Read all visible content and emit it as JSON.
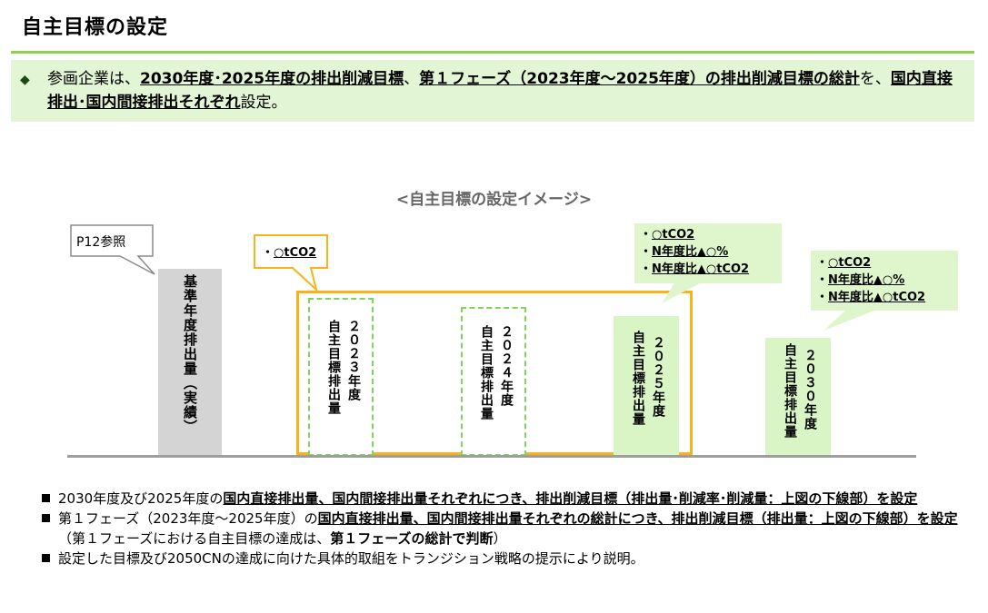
{
  "title": "自主目標の設定",
  "summary": {
    "marker": "◆",
    "segments": [
      {
        "text": "参画企業は、",
        "emph": false
      },
      {
        "text": "2030年度･2025年度の排出削減目標",
        "emph": true
      },
      {
        "text": "、",
        "emph": false
      },
      {
        "text": "第１フェーズ（2023年度～2025年度）の排出削減目標の総計",
        "emph": true
      },
      {
        "text": "を、",
        "emph": false
      },
      {
        "text": "国内直接排出･国内間接排出それぞれ",
        "emph": true
      },
      {
        "text": "設定。",
        "emph": false
      }
    ]
  },
  "diagram": {
    "caption": "<自主目標の設定イメージ>",
    "reference_label": "P12参照",
    "base_bar_label": "基準年度排出量（実績）",
    "bars": [
      {
        "label": "自主目標排出量",
        "year": "２０２３年度"
      },
      {
        "label": "自主目標排出量",
        "year": "２０２４年度"
      },
      {
        "label": "自主目標排出量",
        "year": "２０２５年度"
      },
      {
        "label": "自主目標排出量",
        "year": "２０３０年度"
      }
    ],
    "callouts": {
      "phase1_total": [
        "○tCO2"
      ],
      "fy2025": [
        "○tCO2",
        "N年度比▲○%",
        "N年度比▲○tCO2"
      ],
      "fy2030": [
        "○tCO2",
        "N年度比▲○%",
        "N年度比▲○tCO2"
      ]
    },
    "bullet_char": "・"
  },
  "notes": [
    {
      "segments": [
        {
          "text": "2030年度及び2025年度の",
          "emph": false
        },
        {
          "text": "国内直接排出量、国内間接排出量それぞれにつき、排出削減目標（排出量･削減率･削減量：上図の下線部）を設定",
          "emph": true
        }
      ]
    },
    {
      "segments": [
        {
          "text": "第１フェーズ（2023年度～2025年度）の",
          "emph": false
        },
        {
          "text": "国内直接排出量、国内間接排出量それぞれの総計につき、排出削減目標（排出量：上図の下線部）を設定",
          "emph": true
        },
        {
          "text": "（第１フェーズにおける自主目標の達成は、",
          "emph": false
        },
        {
          "text": "第１フェーズの総計で判断",
          "emph": "bold"
        },
        {
          "text": "）",
          "emph": false
        }
      ]
    },
    {
      "segments": [
        {
          "text": "設定した目標及び2050CNの達成に向けた具体的取組をトランジション戦略の提示により説明。",
          "emph": false
        }
      ]
    }
  ]
}
